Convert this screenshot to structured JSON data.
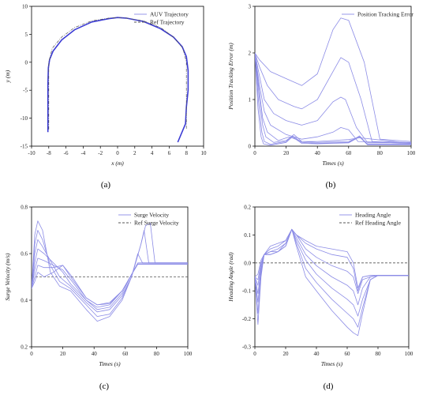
{
  "figure": {
    "background": "#ffffff"
  },
  "colors": {
    "series": "#3b3bd4",
    "series_light": "#8c8ce6",
    "ref": "#555555",
    "axis": "#000000"
  },
  "chart_data": [
    {
      "type": "line",
      "panel_label": "(a)",
      "xlabel": "x (m)",
      "ylabel": "y (m)",
      "xlim": [
        -10,
        10
      ],
      "ylim": [
        -15,
        10
      ],
      "xticks": [
        -10,
        -8,
        -6,
        -4,
        -2,
        0,
        2,
        4,
        6,
        8,
        10
      ],
      "yticks": [
        -15,
        -10,
        -5,
        0,
        5,
        10
      ],
      "grid": false,
      "legend_position": "top-right",
      "legend": [
        "AUV Trajectory",
        "Ref Trajectory"
      ],
      "series": [
        {
          "name": "AUV Trajectory",
          "x": [
            -8.1,
            -8.1,
            -8.1,
            -8.05,
            -7.9,
            -7.5,
            -6.5,
            -5,
            -3,
            -1,
            0,
            1,
            3,
            5,
            6.5,
            7.5,
            8.0,
            8.2,
            8.2,
            8.0,
            7.9,
            7.0
          ],
          "y": [
            -12.5,
            -8,
            -4,
            -1,
            0.5,
            2,
            4,
            5.8,
            7.2,
            7.8,
            8.0,
            7.9,
            7.3,
            6.0,
            4.5,
            2.8,
            1.0,
            -1.5,
            -5,
            -8,
            -11,
            -14.3
          ]
        },
        {
          "name": "Ref Trajectory",
          "x": [
            -8,
            -8,
            -8,
            -7.6,
            -6.5,
            -5,
            -3,
            -1,
            0,
            1,
            3,
            5,
            6.5,
            7.6,
            8,
            8,
            8
          ],
          "y": [
            -12,
            -6,
            0,
            2.5,
            4.5,
            6.2,
            7.4,
            7.9,
            8,
            7.9,
            7.4,
            6.2,
            4.5,
            2.5,
            0,
            -6,
            -12
          ]
        }
      ]
    },
    {
      "type": "line",
      "panel_label": "(b)",
      "xlabel": "Times (s)",
      "ylabel": "Position Tracking Error (m)",
      "xlim": [
        0,
        100
      ],
      "ylim": [
        0,
        3
      ],
      "xticks": [
        0,
        20,
        40,
        60,
        80,
        100
      ],
      "yticks": [
        0,
        1,
        2,
        3
      ],
      "grid": false,
      "legend_position": "top-right",
      "legend": [
        "Position Tracking Error"
      ],
      "series": [
        {
          "x": [
            0,
            3,
            10,
            20,
            30,
            40,
            50,
            55,
            60,
            70,
            80,
            100
          ],
          "y": [
            2.0,
            1.85,
            1.6,
            1.45,
            1.3,
            1.55,
            2.5,
            2.75,
            2.7,
            1.8,
            0.15,
            0.1
          ]
        },
        {
          "x": [
            0,
            3,
            8,
            15,
            25,
            30,
            40,
            50,
            55,
            60,
            68,
            75,
            100
          ],
          "y": [
            2.0,
            1.7,
            1.3,
            1.0,
            0.85,
            0.8,
            1.0,
            1.6,
            1.9,
            1.8,
            1.0,
            0.1,
            0.08
          ]
        },
        {
          "x": [
            0,
            3,
            6,
            12,
            20,
            30,
            40,
            50,
            55,
            58,
            65,
            72,
            100
          ],
          "y": [
            2.0,
            1.5,
            1.0,
            0.7,
            0.55,
            0.45,
            0.55,
            0.95,
            1.05,
            1.0,
            0.4,
            0.08,
            0.07
          ]
        },
        {
          "x": [
            0,
            3,
            6,
            10,
            20,
            30,
            40,
            50,
            55,
            60,
            66,
            100
          ],
          "y": [
            2.0,
            1.3,
            0.75,
            0.45,
            0.25,
            0.15,
            0.2,
            0.3,
            0.4,
            0.35,
            0.1,
            0.06
          ]
        },
        {
          "x": [
            0,
            3,
            5,
            8,
            15,
            22,
            30,
            40,
            50,
            60,
            67,
            100
          ],
          "y": [
            2.0,
            1.15,
            0.6,
            0.3,
            0.12,
            0.2,
            0.1,
            0.1,
            0.12,
            0.14,
            0.18,
            0.06
          ]
        },
        {
          "x": [
            0,
            3,
            5,
            7,
            12,
            20,
            25,
            30,
            40,
            50,
            60,
            67,
            72,
            100
          ],
          "y": [
            2.0,
            1.0,
            0.45,
            0.2,
            0.08,
            0.12,
            0.25,
            0.1,
            0.08,
            0.09,
            0.1,
            0.2,
            0.05,
            0.05
          ]
        },
        {
          "x": [
            0,
            2.5,
            4.5,
            6,
            10,
            20,
            24,
            30,
            40,
            50,
            60,
            67,
            72,
            100
          ],
          "y": [
            2.0,
            0.9,
            0.3,
            0.1,
            0.04,
            0.1,
            0.22,
            0.08,
            0.06,
            0.07,
            0.08,
            0.22,
            0.04,
            0.04
          ]
        },
        {
          "x": [
            0,
            2,
            4,
            5.5,
            10,
            20,
            24,
            30,
            40,
            50,
            60,
            67,
            72,
            100
          ],
          "y": [
            2.0,
            0.8,
            0.2,
            0.05,
            0.02,
            0.08,
            0.2,
            0.06,
            0.05,
            0.06,
            0.07,
            0.2,
            0.03,
            0.03
          ]
        }
      ]
    },
    {
      "type": "line",
      "panel_label": "(c)",
      "xlabel": "Times (s)",
      "ylabel": "Surge Velocity (m/s)",
      "xlim": [
        0,
        100
      ],
      "ylim": [
        0.2,
        0.8
      ],
      "xticks": [
        0,
        20,
        40,
        60,
        80,
        100
      ],
      "yticks": [
        0.2,
        0.4,
        0.6,
        0.8
      ],
      "grid": false,
      "legend_position": "top-right",
      "legend": [
        "Surge Velocity",
        "Ref Surge Velocity"
      ],
      "ref_line": 0.5,
      "series": [
        {
          "x": [
            0,
            2,
            4,
            7,
            12,
            18,
            25,
            35,
            42,
            50,
            58,
            64,
            70,
            73,
            76,
            79,
            100
          ],
          "y": [
            0.45,
            0.68,
            0.74,
            0.7,
            0.52,
            0.46,
            0.44,
            0.36,
            0.31,
            0.33,
            0.4,
            0.5,
            0.64,
            0.72,
            0.73,
            0.56,
            0.56
          ]
        },
        {
          "x": [
            0,
            2,
            4,
            7,
            12,
            18,
            25,
            35,
            42,
            50,
            58,
            64,
            70,
            72,
            75,
            100
          ],
          "y": [
            0.45,
            0.64,
            0.7,
            0.66,
            0.55,
            0.48,
            0.45,
            0.38,
            0.33,
            0.34,
            0.41,
            0.5,
            0.64,
            0.7,
            0.56,
            0.56
          ]
        },
        {
          "x": [
            0,
            2,
            4,
            7,
            12,
            18,
            25,
            35,
            42,
            50,
            58,
            64,
            68,
            71,
            100
          ],
          "y": [
            0.45,
            0.6,
            0.66,
            0.63,
            0.57,
            0.5,
            0.46,
            0.39,
            0.35,
            0.36,
            0.42,
            0.5,
            0.6,
            0.56,
            0.56
          ]
        },
        {
          "x": [
            0,
            2,
            4,
            8,
            14,
            20,
            25,
            35,
            42,
            50,
            58,
            64,
            68,
            100
          ],
          "y": [
            0.45,
            0.56,
            0.62,
            0.6,
            0.56,
            0.52,
            0.47,
            0.4,
            0.36,
            0.37,
            0.43,
            0.51,
            0.56,
            0.56
          ]
        },
        {
          "x": [
            0,
            2,
            4,
            8,
            14,
            20,
            26,
            35,
            42,
            50,
            58,
            64,
            68,
            100
          ],
          "y": [
            0.45,
            0.53,
            0.58,
            0.57,
            0.55,
            0.53,
            0.48,
            0.4,
            0.37,
            0.38,
            0.44,
            0.51,
            0.555,
            0.555
          ]
        },
        {
          "x": [
            0,
            2,
            4,
            8,
            14,
            20,
            26,
            35,
            42,
            50,
            58,
            64,
            68,
            100
          ],
          "y": [
            0.45,
            0.5,
            0.55,
            0.54,
            0.54,
            0.55,
            0.49,
            0.41,
            0.38,
            0.385,
            0.44,
            0.51,
            0.555,
            0.555
          ]
        },
        {
          "x": [
            0,
            2,
            4,
            8,
            14,
            20,
            26,
            35,
            42,
            50,
            58,
            64,
            68,
            100
          ],
          "y": [
            0.45,
            0.48,
            0.52,
            0.5,
            0.52,
            0.55,
            0.5,
            0.41,
            0.38,
            0.39,
            0.44,
            0.51,
            0.555,
            0.555
          ]
        }
      ]
    },
    {
      "type": "line",
      "panel_label": "(d)",
      "xlabel": "Times (s)",
      "ylabel": "Heading Angle (rad)",
      "xlim": [
        0,
        100
      ],
      "ylim": [
        -0.3,
        0.2
      ],
      "xticks": [
        0,
        20,
        40,
        60,
        80,
        100
      ],
      "yticks": [
        -0.3,
        -0.2,
        -0.1,
        0.0,
        0.1,
        0.2
      ],
      "ytick_labels": [
        "-0.3",
        "-0.2",
        "-0.1",
        "0.0",
        "0.1",
        "0.2"
      ],
      "grid": false,
      "legend_position": "top-right",
      "legend": [
        "Heading Angle",
        "Ref Heading Angle"
      ],
      "ref_line": 0.0,
      "series": [
        {
          "x": [
            0,
            2,
            4,
            6,
            10,
            15,
            20,
            24,
            27,
            33,
            40,
            50,
            60,
            64,
            67,
            70,
            75,
            80,
            100
          ],
          "y": [
            -0.05,
            -0.22,
            -0.05,
            0.03,
            0.06,
            0.07,
            0.08,
            0.12,
            0.06,
            -0.05,
            -0.1,
            -0.17,
            -0.23,
            -0.25,
            -0.26,
            -0.18,
            -0.06,
            -0.045,
            -0.045
          ]
        },
        {
          "x": [
            0,
            2,
            4,
            6,
            10,
            15,
            20,
            24,
            27,
            33,
            40,
            50,
            60,
            64,
            67,
            70,
            75,
            80,
            100
          ],
          "y": [
            -0.05,
            -0.18,
            -0.04,
            0.03,
            0.05,
            0.06,
            0.08,
            0.12,
            0.07,
            -0.02,
            -0.07,
            -0.13,
            -0.18,
            -0.2,
            -0.23,
            -0.16,
            -0.06,
            -0.045,
            -0.045
          ]
        },
        {
          "x": [
            0,
            2,
            4,
            6,
            10,
            15,
            20,
            24,
            27,
            33,
            40,
            50,
            60,
            64,
            67,
            70,
            75,
            80,
            100
          ],
          "y": [
            -0.05,
            -0.14,
            -0.03,
            0.03,
            0.04,
            0.05,
            0.07,
            0.12,
            0.08,
            0.01,
            -0.04,
            -0.09,
            -0.13,
            -0.15,
            -0.19,
            -0.13,
            -0.06,
            -0.045,
            -0.045
          ]
        },
        {
          "x": [
            0,
            2,
            4,
            6,
            10,
            15,
            20,
            24,
            27,
            33,
            40,
            50,
            60,
            64,
            67,
            70,
            75,
            80,
            100
          ],
          "y": [
            -0.05,
            -0.11,
            -0.02,
            0.03,
            0.04,
            0.04,
            0.07,
            0.12,
            0.09,
            0.03,
            -0.01,
            -0.05,
            -0.08,
            -0.1,
            -0.15,
            -0.09,
            -0.05,
            -0.045,
            -0.045
          ]
        },
        {
          "x": [
            0,
            2,
            4,
            6,
            10,
            15,
            20,
            24,
            27,
            33,
            40,
            50,
            60,
            64,
            67,
            70,
            75,
            80,
            100
          ],
          "y": [
            -0.05,
            -0.08,
            -0.01,
            0.03,
            0.03,
            0.04,
            0.06,
            0.12,
            0.1,
            0.05,
            0.02,
            -0.01,
            -0.03,
            -0.05,
            -0.11,
            -0.06,
            -0.05,
            -0.045,
            -0.045
          ]
        },
        {
          "x": [
            0,
            2,
            4,
            6,
            10,
            15,
            20,
            24,
            27,
            33,
            40,
            50,
            60,
            64,
            67,
            70,
            75,
            80,
            100
          ],
          "y": [
            -0.05,
            -0.06,
            0.0,
            0.03,
            0.03,
            0.04,
            0.06,
            0.12,
            0.1,
            0.07,
            0.05,
            0.03,
            0.02,
            -0.02,
            -0.1,
            -0.05,
            -0.045,
            -0.045,
            -0.045
          ]
        },
        {
          "x": [
            0,
            2,
            4,
            6,
            10,
            15,
            20,
            24,
            27,
            33,
            40,
            50,
            60,
            64,
            67,
            70,
            75,
            80,
            100
          ],
          "y": [
            -0.05,
            -0.04,
            0.01,
            0.03,
            0.03,
            0.04,
            0.06,
            0.12,
            0.1,
            0.08,
            0.06,
            0.05,
            0.04,
            0.0,
            -0.09,
            -0.05,
            -0.045,
            -0.045,
            -0.045
          ]
        }
      ]
    }
  ]
}
